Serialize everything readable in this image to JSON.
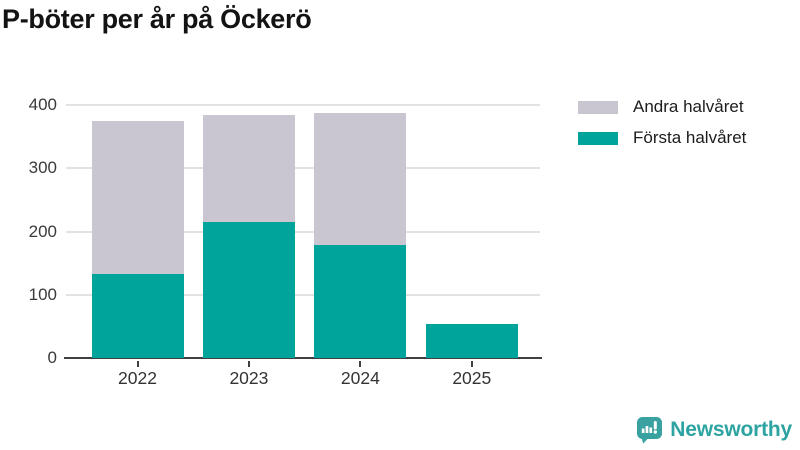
{
  "title": "P-böter per år på Öckerö",
  "chart_data": {
    "type": "bar",
    "stacked": true,
    "title": "P-böter per år på Öckerö",
    "categories": [
      "2022",
      "2023",
      "2024",
      "2025"
    ],
    "series": [
      {
        "name": "Första halvåret",
        "color": "#00a49b",
        "values": [
          133,
          215,
          178,
          53
        ]
      },
      {
        "name": "Andra halvåret",
        "color": "#c9c6d1",
        "values": [
          242,
          170,
          210,
          0
        ]
      }
    ],
    "totals": [
      375,
      385,
      388,
      53
    ],
    "xlabel": "",
    "ylabel": "",
    "ylim": [
      0,
      400
    ],
    "yticks": [
      0,
      100,
      200,
      300,
      400
    ],
    "grid": true,
    "legend_position": "top-right",
    "legend": [
      {
        "label": "Andra halvåret",
        "color": "#c9c6d1"
      },
      {
        "label": "Första halvåret",
        "color": "#00a49b"
      }
    ]
  },
  "branding": {
    "logo_text": "Newsworthy",
    "logo_color": "#2da4a2",
    "icon_color": "#3aa1a1"
  },
  "colors": {
    "bar_teal": "#00a49b",
    "bar_gray": "#c9c6d1",
    "gridline": "#e2e2e2",
    "axis": "#404040",
    "title_text": "#131313",
    "tick_text": "#3a3a3a"
  }
}
